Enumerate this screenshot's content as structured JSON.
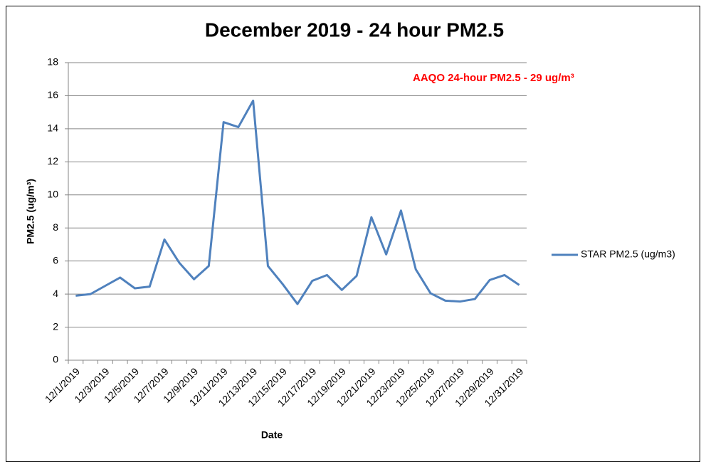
{
  "chart_data": {
    "type": "line",
    "title": "December 2019 - 24 hour PM2.5",
    "annotation": "AAQO 24-hour PM2.5 - 29 ug/m³",
    "x_label": "Date",
    "y_label": "PM2.5 (ug/m³)",
    "categories": [
      "12/1/2019",
      null,
      "12/3/2019",
      null,
      "12/5/2019",
      null,
      "12/7/2019",
      null,
      "12/9/2019",
      null,
      "12/11/2019",
      null,
      "12/13/2019",
      null,
      "12/15/2019",
      null,
      "12/17/2019",
      null,
      "12/19/2019",
      null,
      "12/21/2019",
      null,
      "12/23/2019",
      null,
      "12/25/2019",
      null,
      "12/27/2019",
      null,
      "12/29/2019",
      null,
      "12/31/2019"
    ],
    "series": [
      {
        "name": "STAR PM2.5 (ug/m3)",
        "color": "#4f81bd",
        "values": [
          3.9,
          4.0,
          4.5,
          5.0,
          4.35,
          4.45,
          7.3,
          5.9,
          4.9,
          5.7,
          14.4,
          14.1,
          15.7,
          5.7,
          4.6,
          3.4,
          4.8,
          5.15,
          4.25,
          5.1,
          8.65,
          6.4,
          9.05,
          5.5,
          4.05,
          3.6,
          3.55,
          3.7,
          4.85,
          5.15,
          4.55
        ]
      }
    ],
    "ylim": [
      0,
      18
    ],
    "yticks": [
      0,
      2,
      4,
      6,
      8,
      10,
      12,
      14,
      16,
      18
    ],
    "grid": true,
    "legend": "right"
  }
}
